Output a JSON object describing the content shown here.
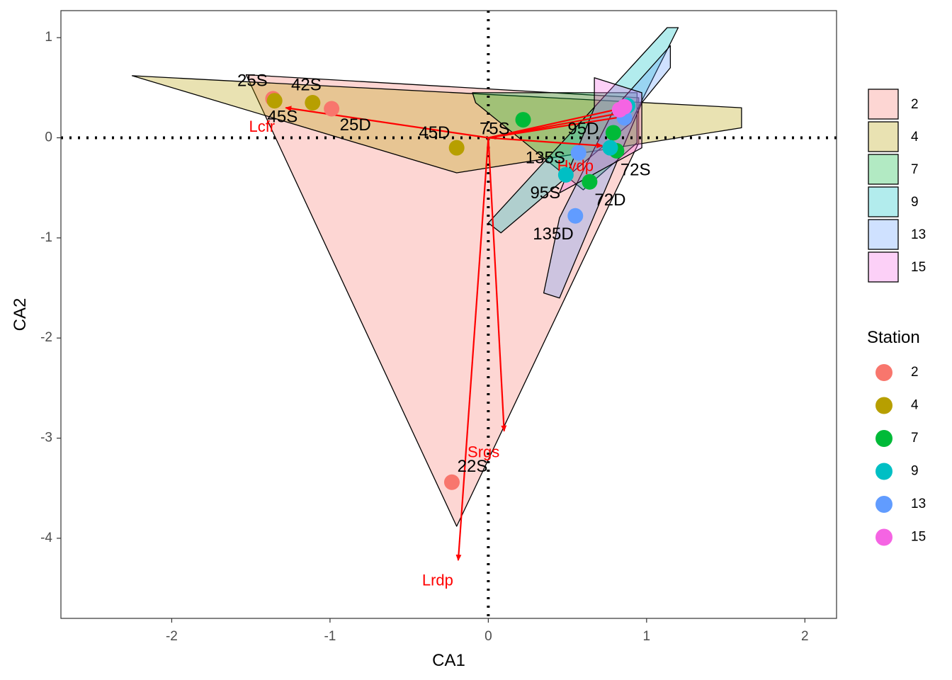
{
  "chart_data": {
    "type": "scatter",
    "title": "",
    "xlabel": "CA1",
    "ylabel": "CA2",
    "xlim": [
      -2.7,
      2.2
    ],
    "ylim": [
      -4.8,
      1.27
    ],
    "x_ticks": [
      -2,
      -1,
      0,
      1,
      2
    ],
    "y_ticks": [
      1,
      0,
      -1,
      -2,
      -3,
      -4
    ],
    "grid": false,
    "reference_lines": {
      "x": 0,
      "y": 0,
      "style": "dotted"
    },
    "fill_legend": {
      "entries": [
        {
          "label": "2",
          "color": "#F8766D"
        },
        {
          "label": "4",
          "color": "#B79F00"
        },
        {
          "label": "7",
          "color": "#00BA38"
        },
        {
          "label": "9",
          "color": "#00BFC4"
        },
        {
          "label": "13",
          "color": "#619CFF"
        },
        {
          "label": "15",
          "color": "#F564E3"
        }
      ]
    },
    "point_legend": {
      "title": "Station",
      "entries": [
        {
          "label": "2",
          "color": "#F8766D"
        },
        {
          "label": "4",
          "color": "#B79F00"
        },
        {
          "label": "7",
          "color": "#00BA38"
        },
        {
          "label": "9",
          "color": "#00BFC4"
        },
        {
          "label": "13",
          "color": "#619CFF"
        },
        {
          "label": "15",
          "color": "#F564E3"
        }
      ]
    },
    "hulls": [
      {
        "station": "2",
        "points": [
          [
            -1.53,
            0.63
          ],
          [
            0.95,
            0.4
          ],
          [
            0.95,
            -0.05
          ],
          [
            -0.2,
            -3.88
          ]
        ]
      },
      {
        "station": "4",
        "points": [
          [
            -2.25,
            0.62
          ],
          [
            1.6,
            0.3
          ],
          [
            1.6,
            0.1
          ],
          [
            -0.2,
            -0.35
          ]
        ]
      },
      {
        "station": "7",
        "points": [
          [
            -0.1,
            0.45
          ],
          [
            0.94,
            0.45
          ],
          [
            0.94,
            -0.05
          ],
          [
            0.6,
            -0.52
          ],
          [
            -0.08,
            0.35
          ]
        ]
      },
      {
        "station": "9",
        "points": [
          [
            1.13,
            1.1
          ],
          [
            1.2,
            1.1
          ],
          [
            0.9,
            0.15
          ],
          [
            0.08,
            -0.95
          ],
          [
            0.0,
            -0.85
          ]
        ]
      },
      {
        "station": "13",
        "points": [
          [
            1.15,
            0.92
          ],
          [
            1.15,
            0.7
          ],
          [
            0.97,
            0.35
          ],
          [
            0.45,
            -1.6
          ],
          [
            0.35,
            -1.55
          ],
          [
            0.45,
            -0.8
          ],
          [
            0.8,
            0.3
          ]
        ]
      },
      {
        "station": "15",
        "points": [
          [
            0.67,
            0.6
          ],
          [
            0.97,
            0.45
          ],
          [
            0.97,
            -0.1
          ],
          [
            0.45,
            -0.55
          ],
          [
            0.67,
            0.3
          ]
        ]
      }
    ],
    "points": [
      {
        "station": "2",
        "x": -1.36,
        "y": 0.39
      },
      {
        "station": "2",
        "x": -0.99,
        "y": 0.29
      },
      {
        "station": "2",
        "x": -0.23,
        "y": -3.44
      },
      {
        "station": "4",
        "x": -1.35,
        "y": 0.37
      },
      {
        "station": "4",
        "x": -1.11,
        "y": 0.35
      },
      {
        "station": "4",
        "x": -0.2,
        "y": -0.1
      },
      {
        "station": "7",
        "x": 0.22,
        "y": 0.18
      },
      {
        "station": "7",
        "x": 0.79,
        "y": 0.05
      },
      {
        "station": "7",
        "x": 0.81,
        "y": -0.13
      },
      {
        "station": "7",
        "x": 0.64,
        "y": -0.44
      },
      {
        "station": "9",
        "x": 0.49,
        "y": -0.37
      },
      {
        "station": "9",
        "x": 0.77,
        "y": -0.1
      },
      {
        "station": "9",
        "x": 0.88,
        "y": 0.32
      },
      {
        "station": "13",
        "x": 0.55,
        "y": -0.78
      },
      {
        "station": "13",
        "x": 0.57,
        "y": -0.15
      },
      {
        "station": "13",
        "x": 0.86,
        "y": 0.2
      },
      {
        "station": "15",
        "x": 0.83,
        "y": 0.28
      },
      {
        "station": "15",
        "x": 0.86,
        "y": 0.31
      }
    ],
    "point_labels": [
      {
        "text": "25S",
        "x": -1.49,
        "y": 0.56
      },
      {
        "text": "42S",
        "x": -1.15,
        "y": 0.52
      },
      {
        "text": "45S",
        "x": -1.3,
        "y": 0.2
      },
      {
        "text": "25D",
        "x": -0.84,
        "y": 0.12
      },
      {
        "text": "45D",
        "x": -0.34,
        "y": 0.04
      },
      {
        "text": "75S",
        "x": 0.04,
        "y": 0.08
      },
      {
        "text": "95D",
        "x": 0.6,
        "y": 0.08
      },
      {
        "text": "135S",
        "x": 0.36,
        "y": -0.21
      },
      {
        "text": "72S",
        "x": 0.93,
        "y": -0.33
      },
      {
        "text": "95S",
        "x": 0.36,
        "y": -0.56
      },
      {
        "text": "72D",
        "x": 0.77,
        "y": -0.63
      },
      {
        "text": "135D",
        "x": 0.41,
        "y": -0.97
      },
      {
        "text": "22S",
        "x": -0.1,
        "y": -3.29
      }
    ],
    "arrows": [
      {
        "label": "Lcfr",
        "x": -1.28,
        "y": 0.3,
        "label_x": -1.43,
        "label_y": 0.1
      },
      {
        "label": "Hvdp",
        "x": 0.72,
        "y": -0.08,
        "label_x": 0.55,
        "label_y": -0.29
      },
      {
        "label": "Srgs",
        "x": 0.1,
        "y": -2.93,
        "label_x": -0.03,
        "label_y": -3.15
      },
      {
        "label": "Lrdp",
        "x": -0.19,
        "y": -4.22,
        "label_x": -0.32,
        "label_y": -4.43
      },
      {
        "label": "",
        "x": 0.86,
        "y": 0.3
      },
      {
        "label": "",
        "x": 0.88,
        "y": 0.26
      },
      {
        "label": "",
        "x": 0.89,
        "y": 0.22
      }
    ],
    "arrow_color": "#FF0000"
  }
}
